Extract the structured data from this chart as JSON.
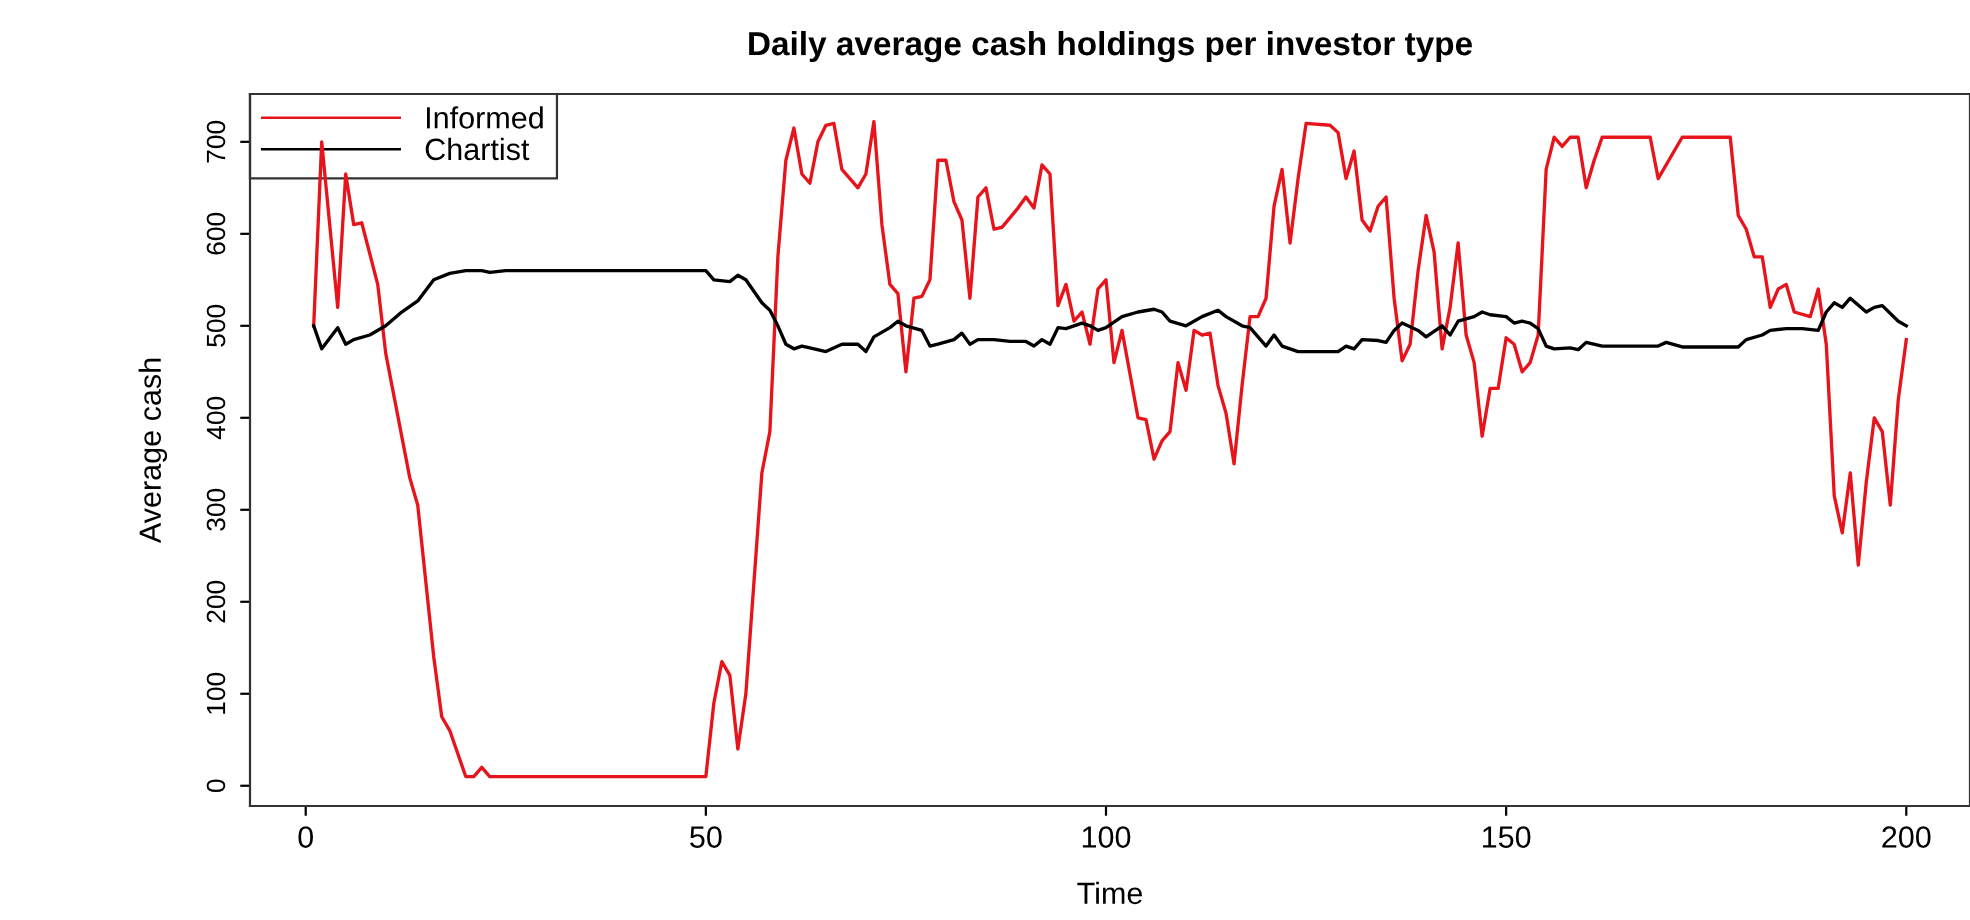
{
  "chart_data": {
    "type": "line",
    "title": "Daily average cash holdings per investor type",
    "xlabel": "Time",
    "ylabel": "Average cash",
    "xlim": [
      -6.96,
      207.96
    ],
    "ylim": [
      -22,
      752
    ],
    "xticks": [
      0,
      50,
      100,
      150,
      200
    ],
    "yticks": [
      0,
      100,
      200,
      300,
      400,
      500,
      600,
      700
    ],
    "grid": false,
    "legend": "top left",
    "marker": "none",
    "line_style": "solid",
    "series": [
      {
        "name": "Informed",
        "color": "#e8141c",
        "x": [
          1,
          2,
          4,
          5,
          6,
          7,
          9,
          10,
          13,
          14,
          16,
          17,
          18,
          20,
          21,
          22,
          23,
          50,
          51,
          52,
          53,
          54,
          55,
          57,
          58,
          59,
          60,
          61,
          62,
          63,
          64,
          65,
          66,
          67,
          69,
          70,
          71,
          72,
          73,
          74,
          75,
          76,
          77,
          78,
          79,
          80,
          81,
          82,
          83,
          84,
          85,
          86,
          87,
          89,
          90,
          91,
          92,
          93,
          94,
          95,
          96,
          97,
          98,
          99,
          100,
          101,
          102,
          104,
          105,
          106,
          107,
          108,
          109,
          110,
          111,
          112,
          113,
          114,
          115,
          116,
          117,
          118,
          119,
          120,
          121,
          122,
          123,
          124,
          125,
          128,
          129,
          130,
          131,
          132,
          133,
          134,
          135,
          136,
          137,
          138,
          139,
          140,
          141,
          142,
          143,
          144,
          145,
          146,
          147,
          148,
          149,
          150,
          151,
          152,
          153,
          154,
          155,
          156,
          157,
          158,
          159,
          160,
          161,
          162,
          168,
          169,
          171,
          172,
          178,
          179,
          180,
          181,
          182,
          183,
          184,
          185,
          186,
          188,
          189,
          190,
          191,
          192,
          193,
          194,
          195,
          196,
          197,
          198,
          199,
          200
        ],
        "values": [
          500,
          700,
          520,
          665,
          610,
          612,
          545,
          470,
          335,
          305,
          140,
          75,
          60,
          10,
          10,
          20,
          10,
          10,
          90,
          135,
          120,
          40,
          100,
          340,
          385,
          575,
          680,
          715,
          665,
          655,
          700,
          718,
          720,
          670,
          650,
          665,
          722,
          610,
          545,
          535,
          450,
          530,
          532,
          550,
          680,
          680,
          635,
          615,
          530,
          640,
          650,
          605,
          607,
          628,
          640,
          628,
          675,
          665,
          522,
          545,
          505,
          515,
          480,
          540,
          550,
          460,
          495,
          400,
          398,
          355,
          375,
          385,
          460,
          430,
          495,
          490,
          492,
          435,
          405,
          350,
          435,
          510,
          510,
          530,
          630,
          670,
          590,
          660,
          720,
          718,
          710,
          660,
          690,
          615,
          603,
          630,
          640,
          530,
          462,
          480,
          560,
          620,
          580,
          475,
          520,
          590,
          490,
          460,
          380,
          432,
          432,
          487,
          480,
          450,
          460,
          490,
          670,
          705,
          695,
          705,
          705,
          650,
          680,
          705,
          705,
          660,
          690,
          705,
          705,
          620,
          605,
          575,
          575,
          520,
          540,
          545,
          515,
          510,
          540,
          480,
          315,
          275,
          340,
          240,
          330,
          400,
          385,
          305,
          420,
          485
        ]
      },
      {
        "name": "Chartist",
        "color": "#000000",
        "x": [
          1,
          2,
          4,
          5,
          6,
          8,
          10,
          12,
          14,
          16,
          18,
          20,
          22,
          23,
          25,
          50,
          51,
          53,
          54,
          55,
          57,
          58,
          59,
          60,
          61,
          62,
          63,
          65,
          67,
          69,
          70,
          71,
          73,
          74,
          75,
          77,
          78,
          79,
          81,
          82,
          83,
          84,
          86,
          88,
          90,
          91,
          92,
          93,
          94,
          95,
          97,
          98,
          99,
          100,
          102,
          104,
          106,
          107,
          108,
          110,
          112,
          114,
          115,
          117,
          118,
          119,
          120,
          121,
          122,
          124,
          129,
          130,
          131,
          132,
          134,
          135,
          136,
          137,
          139,
          140,
          142,
          143,
          144,
          146,
          147,
          148,
          150,
          151,
          152,
          153,
          154,
          155,
          156,
          158,
          159,
          160,
          162,
          169,
          170,
          172,
          179,
          180,
          182,
          183,
          185,
          187,
          189,
          190,
          191,
          192,
          193,
          195,
          196,
          197,
          199,
          200
        ],
        "values": [
          500,
          475,
          498,
          480,
          485,
          490,
          500,
          515,
          527,
          550,
          557,
          560,
          560,
          558,
          560,
          560,
          550,
          548,
          555,
          550,
          525,
          517,
          500,
          480,
          475,
          478,
          476,
          472,
          480,
          480,
          472,
          488,
          498,
          505,
          500,
          495,
          478,
          480,
          485,
          492,
          480,
          485,
          485,
          483,
          483,
          478,
          485,
          480,
          498,
          497,
          503,
          500,
          495,
          498,
          510,
          515,
          518,
          515,
          505,
          500,
          510,
          517,
          510,
          500,
          498,
          488,
          478,
          490,
          478,
          472,
          472,
          478,
          475,
          485,
          484,
          482,
          495,
          503,
          495,
          488,
          500,
          490,
          505,
          510,
          515,
          512,
          510,
          503,
          505,
          503,
          497,
          478,
          475,
          476,
          474,
          482,
          478,
          478,
          482,
          477,
          477,
          485,
          490,
          495,
          497,
          497,
          495,
          515,
          525,
          520,
          530,
          515,
          520,
          522,
          505,
          500
        ]
      }
    ]
  }
}
